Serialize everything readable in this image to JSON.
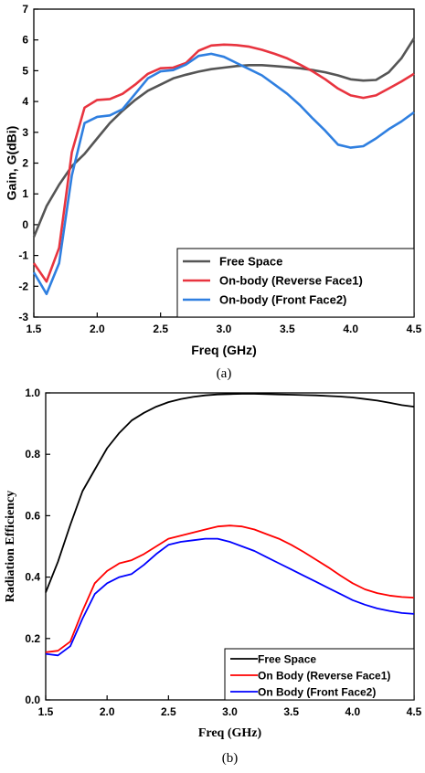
{
  "chart_data": [
    {
      "type": "line",
      "caption": "(a)",
      "xlabel": "Freq (GHz)",
      "ylabel": "Gain, G(dBi)",
      "xlim": [
        1.5,
        4.5
      ],
      "ylim": [
        -3,
        7
      ],
      "xticks": [
        1.5,
        2.0,
        2.5,
        3.0,
        3.5,
        4.0,
        4.5
      ],
      "yticks": [
        -3,
        -2,
        -1,
        0,
        1,
        2,
        3,
        4,
        5,
        6,
        7
      ],
      "grid": false,
      "legend_position": "bottom-right",
      "series": [
        {
          "name": "Free Space",
          "color": "#555555",
          "x": [
            1.5,
            1.6,
            1.7,
            1.8,
            1.9,
            2.0,
            2.1,
            2.2,
            2.3,
            2.4,
            2.5,
            2.6,
            2.7,
            2.8,
            2.9,
            3.0,
            3.1,
            3.2,
            3.3,
            3.4,
            3.5,
            3.6,
            3.7,
            3.8,
            3.9,
            4.0,
            4.1,
            4.2,
            4.3,
            4.4,
            4.5
          ],
          "y": [
            -0.4,
            0.6,
            1.3,
            1.9,
            2.3,
            2.8,
            3.3,
            3.7,
            4.05,
            4.35,
            4.55,
            4.75,
            4.87,
            4.97,
            5.05,
            5.1,
            5.15,
            5.18,
            5.18,
            5.15,
            5.12,
            5.08,
            5.02,
            4.95,
            4.85,
            4.72,
            4.68,
            4.7,
            4.95,
            5.4,
            6.05
          ]
        },
        {
          "name": "On-body (Reverse Face1)",
          "color": "#e8343f",
          "x": [
            1.5,
            1.6,
            1.7,
            1.8,
            1.9,
            2.0,
            2.1,
            2.2,
            2.3,
            2.4,
            2.5,
            2.6,
            2.7,
            2.8,
            2.9,
            3.0,
            3.1,
            3.2,
            3.3,
            3.4,
            3.5,
            3.6,
            3.7,
            3.8,
            3.9,
            4.0,
            4.1,
            4.2,
            4.3,
            4.4,
            4.5
          ],
          "y": [
            -1.25,
            -1.85,
            -0.75,
            2.35,
            3.8,
            4.05,
            4.08,
            4.25,
            4.55,
            4.9,
            5.08,
            5.1,
            5.25,
            5.65,
            5.82,
            5.85,
            5.83,
            5.78,
            5.68,
            5.55,
            5.4,
            5.2,
            4.98,
            4.72,
            4.42,
            4.2,
            4.12,
            4.2,
            4.42,
            4.65,
            4.9
          ]
        },
        {
          "name": "On-body (Front Face2)",
          "color": "#2f7fe0",
          "x": [
            1.5,
            1.6,
            1.7,
            1.8,
            1.9,
            2.0,
            2.1,
            2.2,
            2.3,
            2.4,
            2.5,
            2.6,
            2.7,
            2.8,
            2.9,
            3.0,
            3.1,
            3.2,
            3.3,
            3.4,
            3.5,
            3.6,
            3.7,
            3.8,
            3.9,
            4.0,
            4.1,
            4.2,
            4.3,
            4.4,
            4.5
          ],
          "y": [
            -1.55,
            -2.25,
            -1.25,
            1.6,
            3.3,
            3.5,
            3.55,
            3.75,
            4.25,
            4.75,
            4.98,
            5.02,
            5.2,
            5.48,
            5.55,
            5.45,
            5.25,
            5.05,
            4.85,
            4.55,
            4.25,
            3.88,
            3.45,
            3.05,
            2.6,
            2.5,
            2.55,
            2.8,
            3.1,
            3.35,
            3.65
          ]
        }
      ]
    },
    {
      "type": "line",
      "caption": "(b)",
      "xlabel": "Freq (GHz)",
      "ylabel": "Radiation Efficiency",
      "xlim": [
        1.5,
        4.5
      ],
      "ylim": [
        0.0,
        1.0
      ],
      "xticks": [
        1.5,
        2.0,
        2.5,
        3.0,
        3.5,
        4.0,
        4.5
      ],
      "yticks": [
        0.0,
        0.2,
        0.4,
        0.6,
        0.8,
        1.0
      ],
      "grid": false,
      "legend_position": "bottom-right",
      "series": [
        {
          "name": "Free Space",
          "color": "#000000",
          "x": [
            1.5,
            1.6,
            1.7,
            1.8,
            1.9,
            2.0,
            2.1,
            2.2,
            2.3,
            2.4,
            2.5,
            2.6,
            2.7,
            2.8,
            2.9,
            3.0,
            3.1,
            3.2,
            3.3,
            3.4,
            3.5,
            3.6,
            3.7,
            3.8,
            3.9,
            4.0,
            4.1,
            4.2,
            4.3,
            4.4,
            4.5
          ],
          "y": [
            0.35,
            0.45,
            0.57,
            0.68,
            0.75,
            0.82,
            0.87,
            0.91,
            0.935,
            0.955,
            0.97,
            0.98,
            0.987,
            0.992,
            0.995,
            0.996,
            0.997,
            0.997,
            0.996,
            0.995,
            0.994,
            0.993,
            0.992,
            0.99,
            0.988,
            0.985,
            0.98,
            0.975,
            0.968,
            0.96,
            0.955
          ]
        },
        {
          "name": "On Body (Reverse Face1)",
          "color": "#ff0000",
          "x": [
            1.5,
            1.6,
            1.7,
            1.8,
            1.9,
            2.0,
            2.1,
            2.2,
            2.3,
            2.4,
            2.5,
            2.6,
            2.7,
            2.8,
            2.9,
            3.0,
            3.1,
            3.2,
            3.3,
            3.4,
            3.5,
            3.6,
            3.7,
            3.8,
            3.9,
            4.0,
            4.1,
            4.2,
            4.3,
            4.4,
            4.5
          ],
          "y": [
            0.155,
            0.16,
            0.19,
            0.29,
            0.38,
            0.42,
            0.445,
            0.455,
            0.475,
            0.5,
            0.525,
            0.535,
            0.545,
            0.555,
            0.565,
            0.568,
            0.565,
            0.555,
            0.54,
            0.525,
            0.505,
            0.482,
            0.457,
            0.432,
            0.405,
            0.38,
            0.36,
            0.348,
            0.34,
            0.335,
            0.333
          ]
        },
        {
          "name": "On Body (Front Face2)",
          "color": "#0000ff",
          "x": [
            1.5,
            1.6,
            1.7,
            1.8,
            1.9,
            2.0,
            2.1,
            2.2,
            2.3,
            2.4,
            2.5,
            2.6,
            2.7,
            2.8,
            2.9,
            3.0,
            3.1,
            3.2,
            3.3,
            3.4,
            3.5,
            3.6,
            3.7,
            3.8,
            3.9,
            4.0,
            4.1,
            4.2,
            4.3,
            4.4,
            4.5
          ],
          "y": [
            0.15,
            0.145,
            0.175,
            0.265,
            0.345,
            0.38,
            0.4,
            0.41,
            0.44,
            0.475,
            0.505,
            0.515,
            0.52,
            0.525,
            0.525,
            0.515,
            0.5,
            0.485,
            0.465,
            0.445,
            0.425,
            0.405,
            0.385,
            0.365,
            0.345,
            0.325,
            0.31,
            0.298,
            0.29,
            0.283,
            0.28
          ]
        }
      ]
    }
  ]
}
